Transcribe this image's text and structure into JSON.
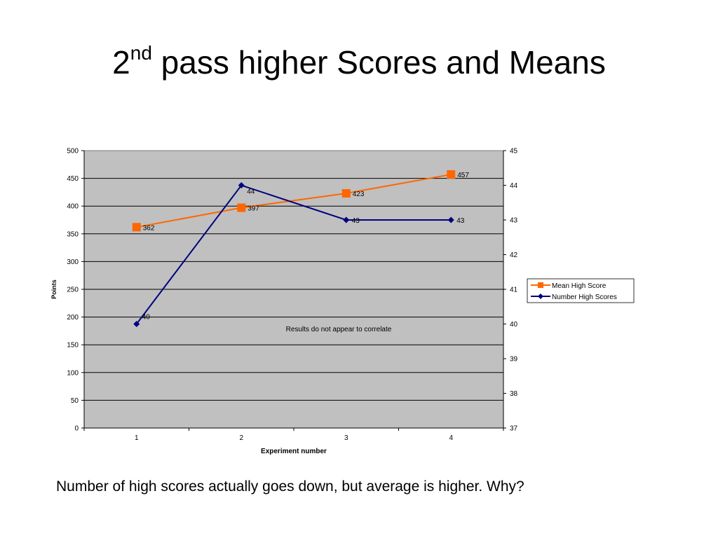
{
  "slide": {
    "title_number": "2",
    "title_superscript": "nd",
    "title_rest": " pass higher Scores and Means",
    "caption": "Number of high scores actually goes down, but average is higher. Why?"
  },
  "chart_data": {
    "type": "line",
    "categories": [
      "1",
      "2",
      "3",
      "4"
    ],
    "xlabel": "Experiment number",
    "ylabel": "Points",
    "ylim": [
      0,
      500
    ],
    "yticks": [
      "0",
      "50",
      "100",
      "150",
      "200",
      "250",
      "300",
      "350",
      "400",
      "450",
      "500"
    ],
    "y2lim": [
      37,
      45
    ],
    "y2ticks": [
      "37",
      "38",
      "39",
      "40",
      "41",
      "42",
      "43",
      "44",
      "45"
    ],
    "grid": true,
    "plot_background": "#c0c0c0",
    "legend_position": "right",
    "annotation": "Results do not appear to correlate",
    "series": [
      {
        "name": "Mean High Score",
        "axis": "left",
        "color": "#ff6600",
        "marker": "square",
        "values": [
          362,
          397,
          423,
          457
        ],
        "labels": [
          "362",
          "397",
          "423",
          "457"
        ]
      },
      {
        "name": "Number High Scores",
        "axis": "right",
        "color": "#000080",
        "marker": "diamond",
        "values": [
          40,
          44,
          43,
          43
        ],
        "labels": [
          "40",
          "44",
          "43",
          "43"
        ]
      }
    ]
  }
}
